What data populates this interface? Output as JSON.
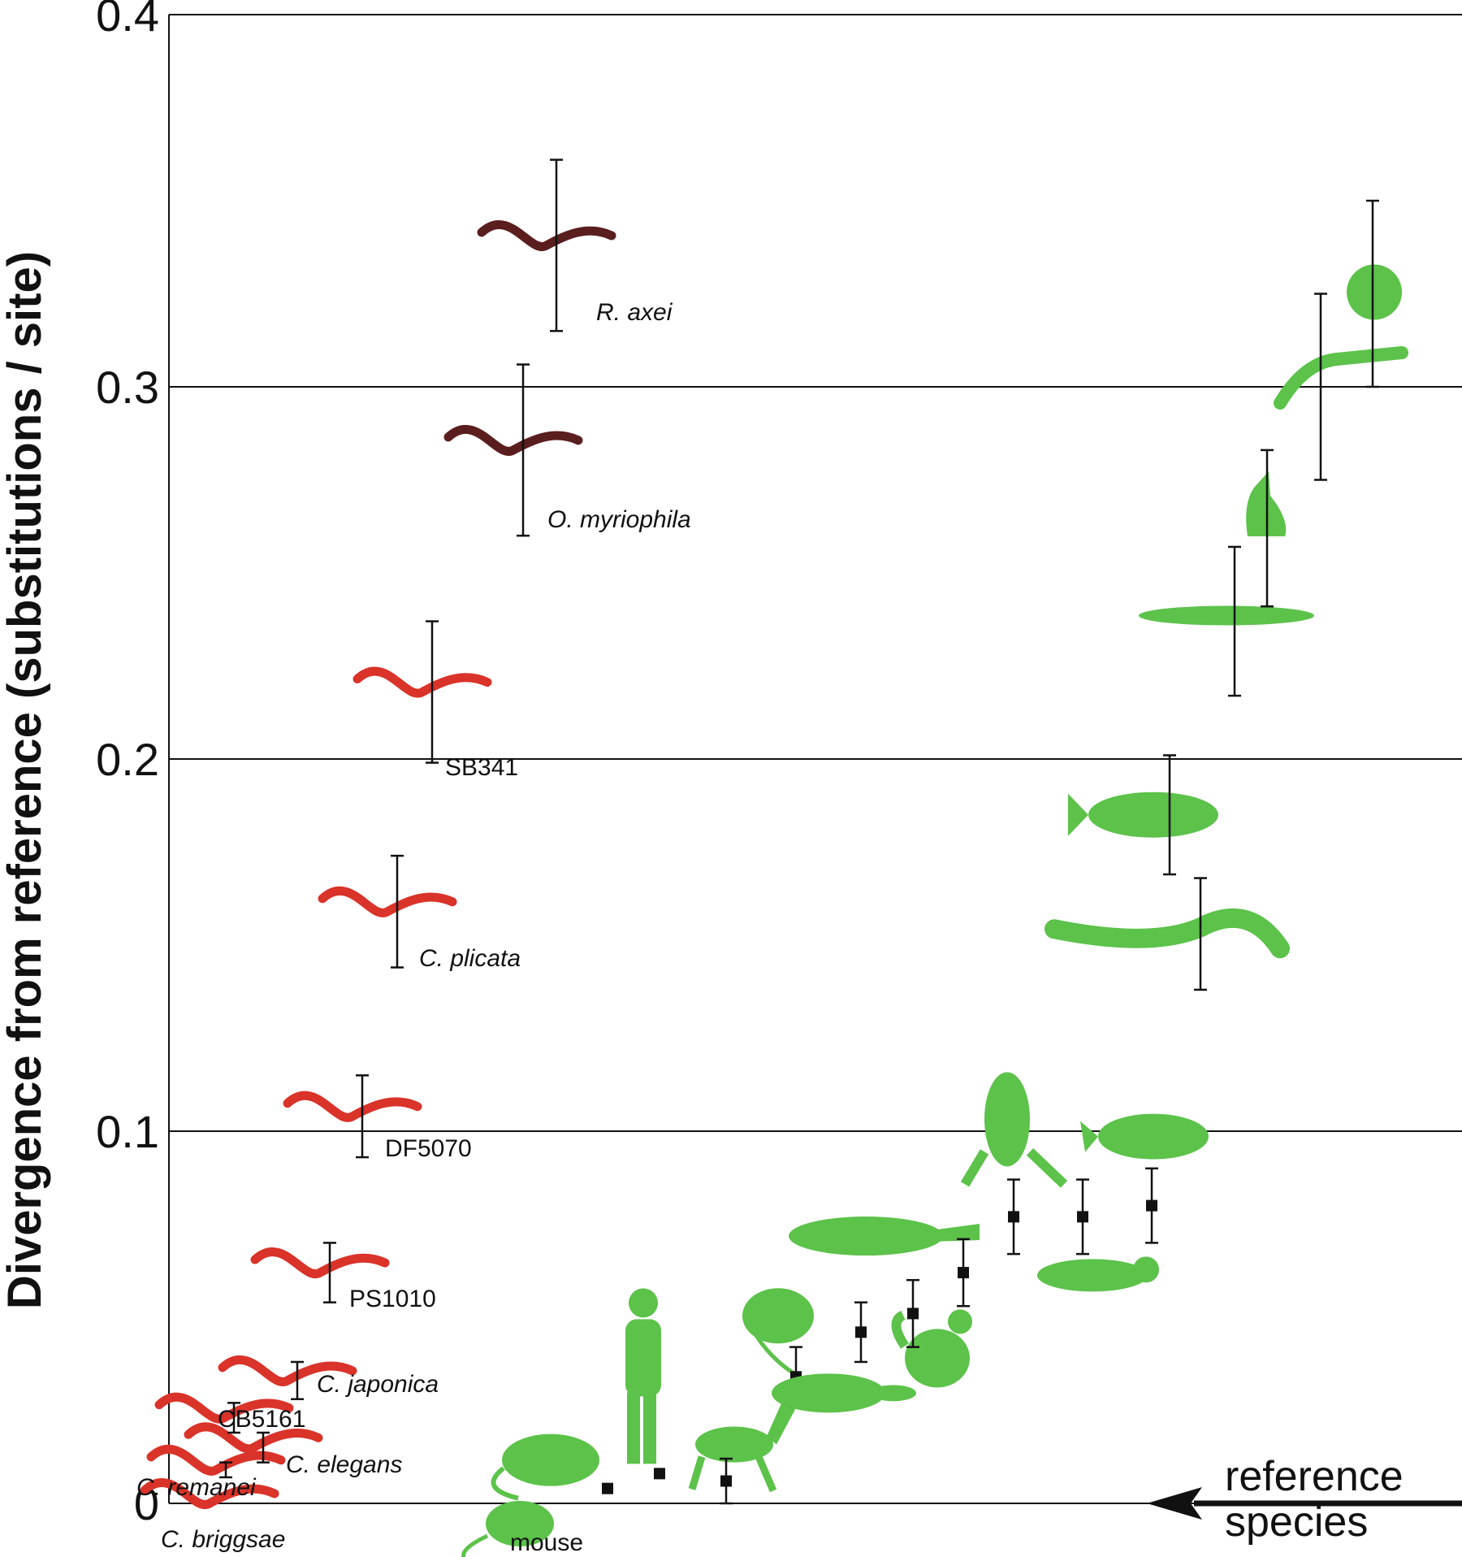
{
  "colors": {
    "nematode_caenorhabditis": "#d9332a",
    "nematode_other": "#5a1e1e",
    "vertebrate_silhouette": "#5cc24a",
    "marker": "#111111",
    "gridline": "#111111"
  },
  "chart_data": {
    "type": "scatter",
    "title": "",
    "xlabel": "",
    "ylabel": "Divergence from reference  (substitutions / site)",
    "ylim": [
      0,
      0.4
    ],
    "yticks": [
      "0",
      "0.1",
      "0.2",
      "0.3",
      "0.4"
    ],
    "grid": "horizontal",
    "reference_annotation": {
      "text_line1": "reference",
      "text_line2": "species",
      "y": 0
    },
    "nematodes": [
      {
        "label": "C. briggsae",
        "italic": true,
        "y": 0,
        "err": 0,
        "color_key": "nematode_caenorhabditis"
      },
      {
        "label": "C. remanei",
        "italic": true,
        "y": 0.009,
        "err": 0.002,
        "color_key": "nematode_caenorhabditis"
      },
      {
        "label": "C. elegans",
        "italic": true,
        "y": 0.015,
        "err": 0.004,
        "color_key": "nematode_caenorhabditis"
      },
      {
        "label": "CB5161",
        "italic": false,
        "y": 0.023,
        "err": 0.004,
        "color_key": "nematode_caenorhabditis"
      },
      {
        "label": "C. japonica",
        "italic": true,
        "y": 0.033,
        "err": 0.005,
        "color_key": "nematode_caenorhabditis"
      },
      {
        "label": "PS1010",
        "italic": false,
        "y": 0.062,
        "err": 0.008,
        "color_key": "nematode_caenorhabditis"
      },
      {
        "label": "DF5070",
        "italic": false,
        "y": 0.104,
        "err": 0.011,
        "color_key": "nematode_caenorhabditis"
      },
      {
        "label": "C. plicata",
        "italic": true,
        "y": 0.159,
        "err": 0.015,
        "color_key": "nematode_caenorhabditis"
      },
      {
        "label": "SB341",
        "italic": false,
        "y": 0.218,
        "err": 0.019,
        "color_key": "nematode_caenorhabditis"
      },
      {
        "label": "O. myriophila",
        "italic": true,
        "y": 0.283,
        "err": 0.023,
        "color_key": "nematode_other"
      },
      {
        "label": "R. axei",
        "italic": true,
        "y": 0.338,
        "err": 0.023,
        "color_key": "nematode_other"
      }
    ],
    "vertebrates": [
      {
        "label": "mouse",
        "y": 0,
        "err": 0,
        "silhouette": "mouse"
      },
      {
        "label": "",
        "y": 0.004,
        "err": 0,
        "silhouette": "rat"
      },
      {
        "label": "",
        "y": 0.008,
        "err": 0,
        "silhouette": "human"
      },
      {
        "label": "",
        "y": 0.006,
        "err": 0.006,
        "silhouette": "horse"
      },
      {
        "label": "",
        "y": 0.034,
        "err": 0.008,
        "silhouette": "armadillo"
      },
      {
        "label": "",
        "y": 0.046,
        "err": 0.008,
        "silhouette": "platypus"
      },
      {
        "label": "",
        "y": 0.051,
        "err": 0.009,
        "silhouette": "chicken"
      },
      {
        "label": "",
        "y": 0.062,
        "err": 0.009,
        "silhouette": "crocodile"
      },
      {
        "label": "",
        "y": 0.077,
        "err": 0.01,
        "silhouette": "frog"
      },
      {
        "label": "",
        "y": 0.077,
        "err": 0.01,
        "silhouette": "axolotl"
      },
      {
        "label": "",
        "y": 0.08,
        "err": 0.01,
        "silhouette": "coelacanth"
      },
      {
        "label": "",
        "y": 0.153,
        "err": 0.015,
        "silhouette": "lamprey"
      },
      {
        "label": "",
        "y": 0.185,
        "err": 0.016,
        "silhouette": "fish"
      },
      {
        "label": "",
        "y": 0.237,
        "err": 0.02,
        "silhouette": "lancelet"
      },
      {
        "label": "",
        "y": 0.262,
        "err": 0.021,
        "silhouette": "ascidian"
      },
      {
        "label": "",
        "y": 0.3,
        "err": 0.025,
        "silhouette": "acorn-worm"
      },
      {
        "label": "",
        "y": 0.325,
        "err": 0.025,
        "silhouette": "sea-urchin"
      }
    ]
  }
}
